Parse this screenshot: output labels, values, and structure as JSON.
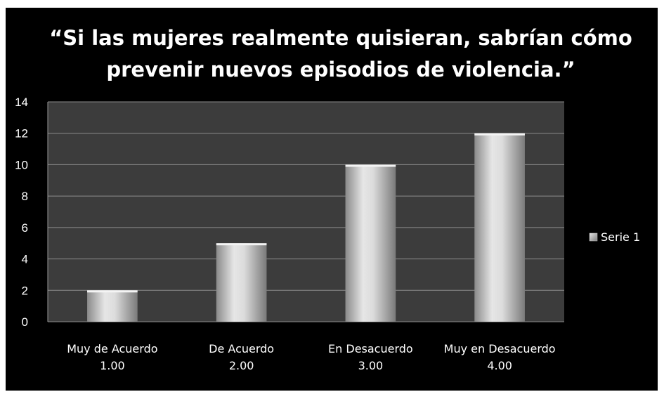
{
  "chart_data": {
    "type": "bar",
    "title": "“Si las mujeres realmente quisieran, sabrían cómo prevenir nuevos episodios de violencia.”",
    "title_lines": [
      "“Si las mujeres realmente quisieran, sabrían cómo",
      "prevenir nuevos episodios de violencia.”"
    ],
    "categories": [
      [
        "Muy de Acuerdo",
        "1.00"
      ],
      [
        "De Acuerdo",
        "2.00"
      ],
      [
        "En Desacuerdo",
        "3.00"
      ],
      [
        "Muy en Desacuerdo",
        "4.00"
      ]
    ],
    "series": [
      {
        "name": "Serie 1",
        "values": [
          2,
          5,
          10,
          12
        ]
      }
    ],
    "xlabel": "",
    "ylabel": "",
    "ylim": [
      0,
      14
    ],
    "yticks": [
      0,
      2,
      4,
      6,
      8,
      10,
      12,
      14
    ],
    "grid": true,
    "legend": "right",
    "colors": {
      "background": "#000000",
      "plot_area": "#3c3c3c",
      "gridline": "#8c8c8c",
      "bar_light": "#e6e6e6",
      "bar_dark": "#8a8a8a",
      "text": "#ffffff"
    }
  }
}
